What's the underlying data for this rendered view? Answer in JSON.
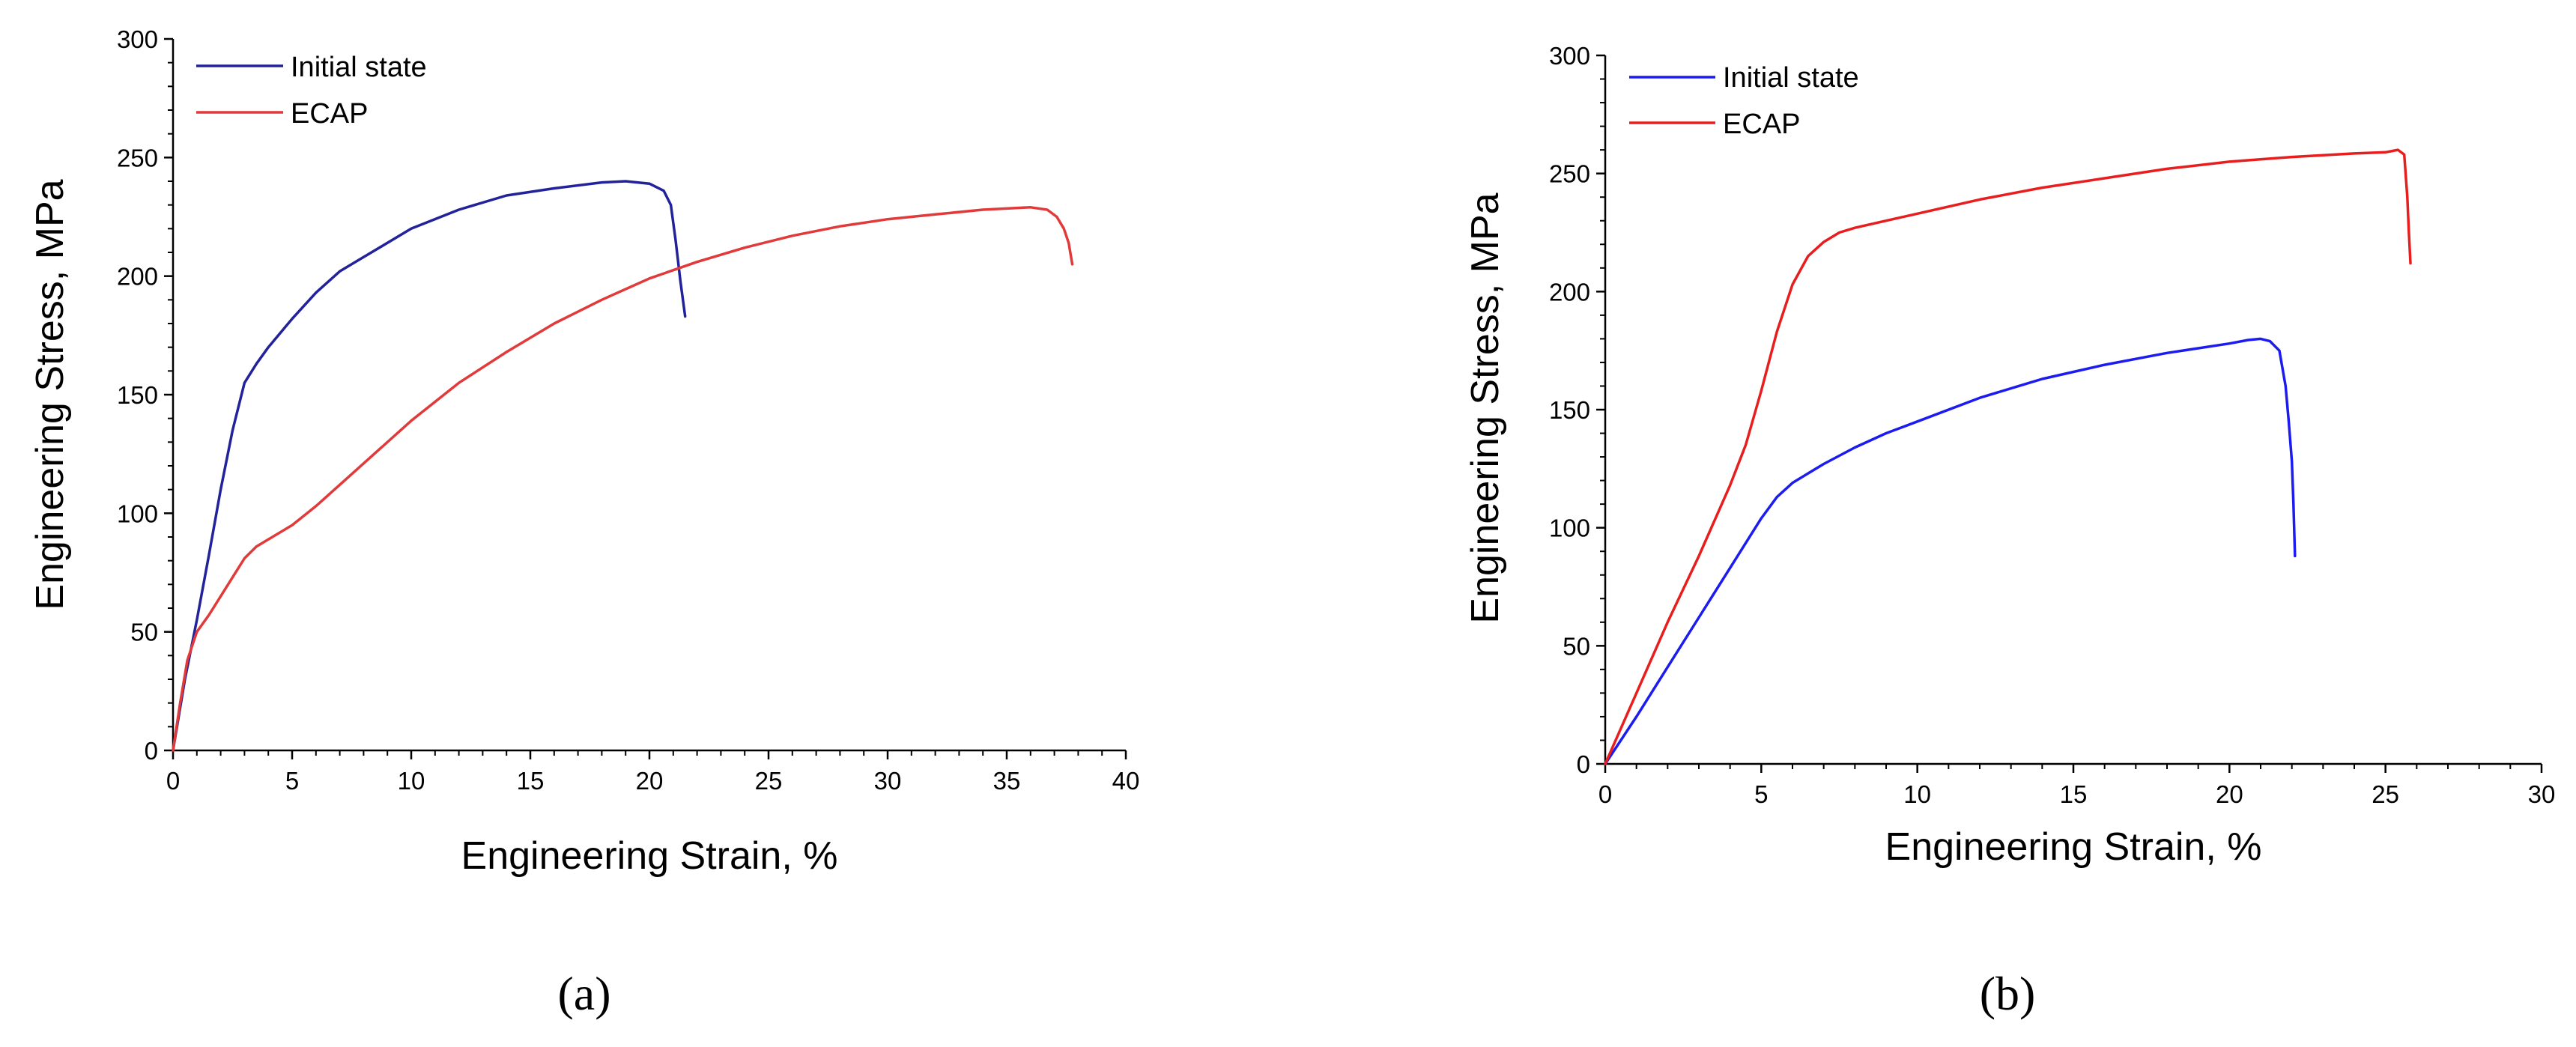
{
  "chart_data": [
    {
      "type": "line",
      "panel_label": "(a)",
      "xlabel": "Engineering Strain, %",
      "ylabel": "Engineering Stress,  MPa",
      "xlim": [
        0,
        40
      ],
      "ylim": [
        0,
        300
      ],
      "xticks": [
        0,
        5,
        10,
        15,
        20,
        25,
        30,
        35,
        40
      ],
      "yticks": [
        0,
        50,
        100,
        150,
        200,
        250,
        300
      ],
      "legend_position": "top-left",
      "series": [
        {
          "name": "Initial state",
          "color": "#22229a",
          "x": [
            0,
            0.5,
            1,
            1.5,
            2,
            2.5,
            3,
            3.5,
            4,
            5,
            6,
            7,
            8,
            10,
            12,
            14,
            16,
            18,
            19,
            20,
            20.6,
            20.9,
            21.1,
            21.3,
            21.5
          ],
          "y": [
            0,
            30,
            55,
            82,
            110,
            135,
            155,
            163,
            170,
            182,
            193,
            202,
            208,
            220,
            228,
            234,
            237,
            239.5,
            240,
            239,
            236,
            230,
            215,
            198,
            183
          ]
        },
        {
          "name": "ECAP",
          "color": "#e03a3a",
          "x": [
            0,
            0.3,
            0.6,
            1,
            1.5,
            2,
            2.5,
            3,
            3.5,
            4,
            5,
            6,
            7,
            8,
            10,
            12,
            14,
            16,
            18,
            20,
            22,
            24,
            26,
            28,
            30,
            32,
            34,
            35,
            36,
            36.7,
            37.1,
            37.4,
            37.6,
            37.75
          ],
          "y": [
            0,
            20,
            38,
            50,
            57,
            65,
            73,
            81,
            86,
            89,
            95,
            103,
            112,
            121,
            139,
            155,
            168,
            180,
            190,
            199,
            206,
            212,
            217,
            221,
            224,
            226,
            228,
            228.5,
            229,
            228,
            225,
            220,
            214,
            205
          ]
        }
      ]
    },
    {
      "type": "line",
      "panel_label": "(b)",
      "xlabel": "Engineering Strain, %",
      "ylabel": "Engineering Stress,  MPa",
      "xlim": [
        0,
        30
      ],
      "ylim": [
        0,
        300
      ],
      "xticks": [
        0,
        5,
        10,
        15,
        20,
        25,
        30
      ],
      "yticks": [
        0,
        50,
        100,
        150,
        200,
        250,
        300
      ],
      "legend_position": "top-left",
      "series": [
        {
          "name": "Initial state",
          "color": "#1c1cf0",
          "x": [
            0,
            1,
            2,
            3,
            4,
            5,
            5.5,
            6,
            6.5,
            7,
            8,
            9,
            10,
            12,
            14,
            16,
            18,
            19,
            20,
            20.6,
            21,
            21.3,
            21.6,
            21.8,
            21.9,
            22,
            22.05,
            22.1
          ],
          "y": [
            0,
            20,
            41,
            62,
            83,
            104,
            113,
            119,
            123,
            127,
            134,
            140,
            145,
            155,
            163,
            169,
            174,
            176,
            178,
            179.5,
            180,
            179,
            175,
            160,
            145,
            128,
            110,
            88
          ]
        },
        {
          "name": "ECAP",
          "color": "#e81e1e",
          "x": [
            0,
            1,
            2,
            3,
            4,
            4.5,
            5,
            5.5,
            6,
            6.5,
            7,
            7.5,
            8,
            9,
            10,
            12,
            14,
            16,
            18,
            20,
            22,
            24,
            25,
            25.4,
            25.6,
            25.7,
            25.75,
            25.8
          ],
          "y": [
            0,
            30,
            60,
            88,
            118,
            135,
            158,
            183,
            203,
            215,
            221,
            225,
            227,
            230,
            233,
            239,
            244,
            248,
            252,
            255,
            257,
            258.5,
            259,
            260,
            258,
            240,
            225,
            212
          ]
        }
      ]
    }
  ]
}
